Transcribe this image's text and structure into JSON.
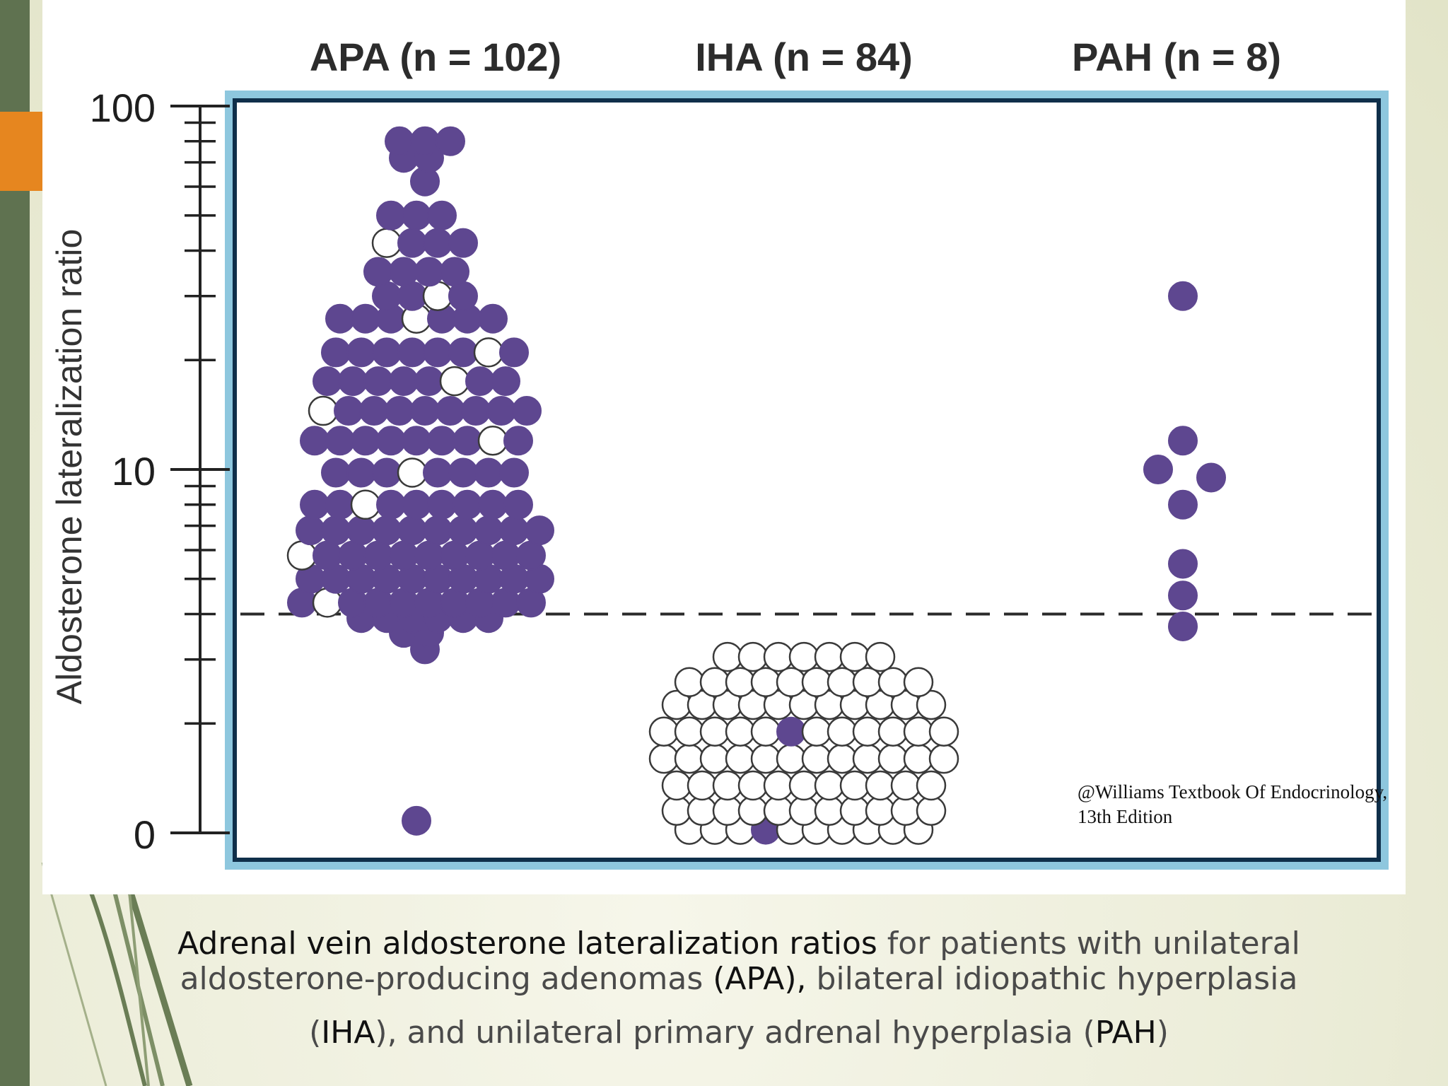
{
  "chart_data": {
    "type": "scatter",
    "subtype": "dot plot (beeswarm)",
    "ylabel": "Aldosterone lateralization ratio",
    "yscale": "log",
    "ylim": [
      0,
      100
    ],
    "yticks": [
      "100",
      "10",
      "0"
    ],
    "threshold_line": {
      "y": 4,
      "style": "dashed"
    },
    "marker_legend": {
      "filled": "#5e4790",
      "open": "#ffffff"
    },
    "groups": [
      {
        "label": "APA (n = 102)",
        "n": 102,
        "filled": 91,
        "open": 11,
        "range": [
          1,
          90
        ]
      },
      {
        "label": "IHA (n = 84)",
        "n": 84,
        "filled": 5,
        "open": 79,
        "range": [
          1,
          4
        ]
      },
      {
        "label": "PAH (n = 8)",
        "n": 8,
        "filled": 8,
        "open": 0,
        "values": [
          30,
          12,
          10,
          9.5,
          8,
          5.5,
          4.5,
          3.7
        ]
      }
    ]
  },
  "credit": {
    "line1": "@Williams Textbook Of Endocrinology,",
    "line2": "13th Edition"
  },
  "caption": {
    "line1_strong": "Adrenal vein aldosterone lateralization ratios",
    "line1_rest": " for patients with unilateral",
    "line2_a": "aldosterone-producing adenomas ",
    "line2_b": "(APA),",
    "line2_c": " bilateral idiopathic hyperplasia",
    "line3_a": "(",
    "line3_b": "IHA",
    "line3_c": "), and unilateral primary adrenal hyperplasia (",
    "line3_d": "PAH",
    "line3_e": ")"
  }
}
